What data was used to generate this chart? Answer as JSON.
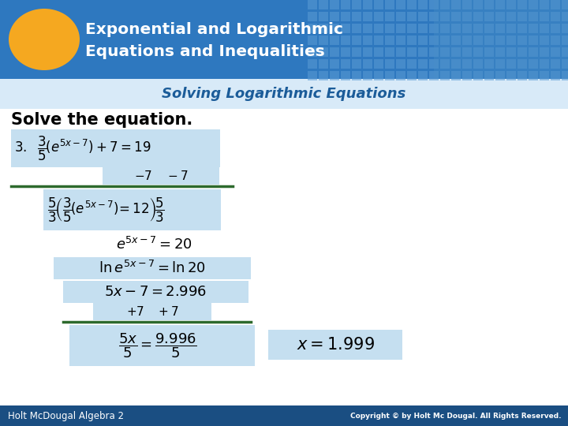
{
  "title_line1": "Exponential and Logarithmic",
  "title_line2": "Equations and Inequalities",
  "subtitle": "Solving Logarithmic Equations",
  "header_bg": "#2E78BF",
  "subtitle_color": "#1B5C99",
  "subtitle_bg": "#FFFFFF",
  "slide_bg": "#FFFFFF",
  "oval_color": "#F5A820",
  "solve_text": "Solve the equation.",
  "footer_left": "Holt McDougal Algebra 2",
  "footer_right": "Copyright © by Holt Mc Dougal. All Rights Reserved.",
  "footer_bg": "#1A4E82",
  "step_highlight": "#C5DFF0",
  "line_color": "#2D6A2D",
  "answer_box_color": "#C5DFF0"
}
